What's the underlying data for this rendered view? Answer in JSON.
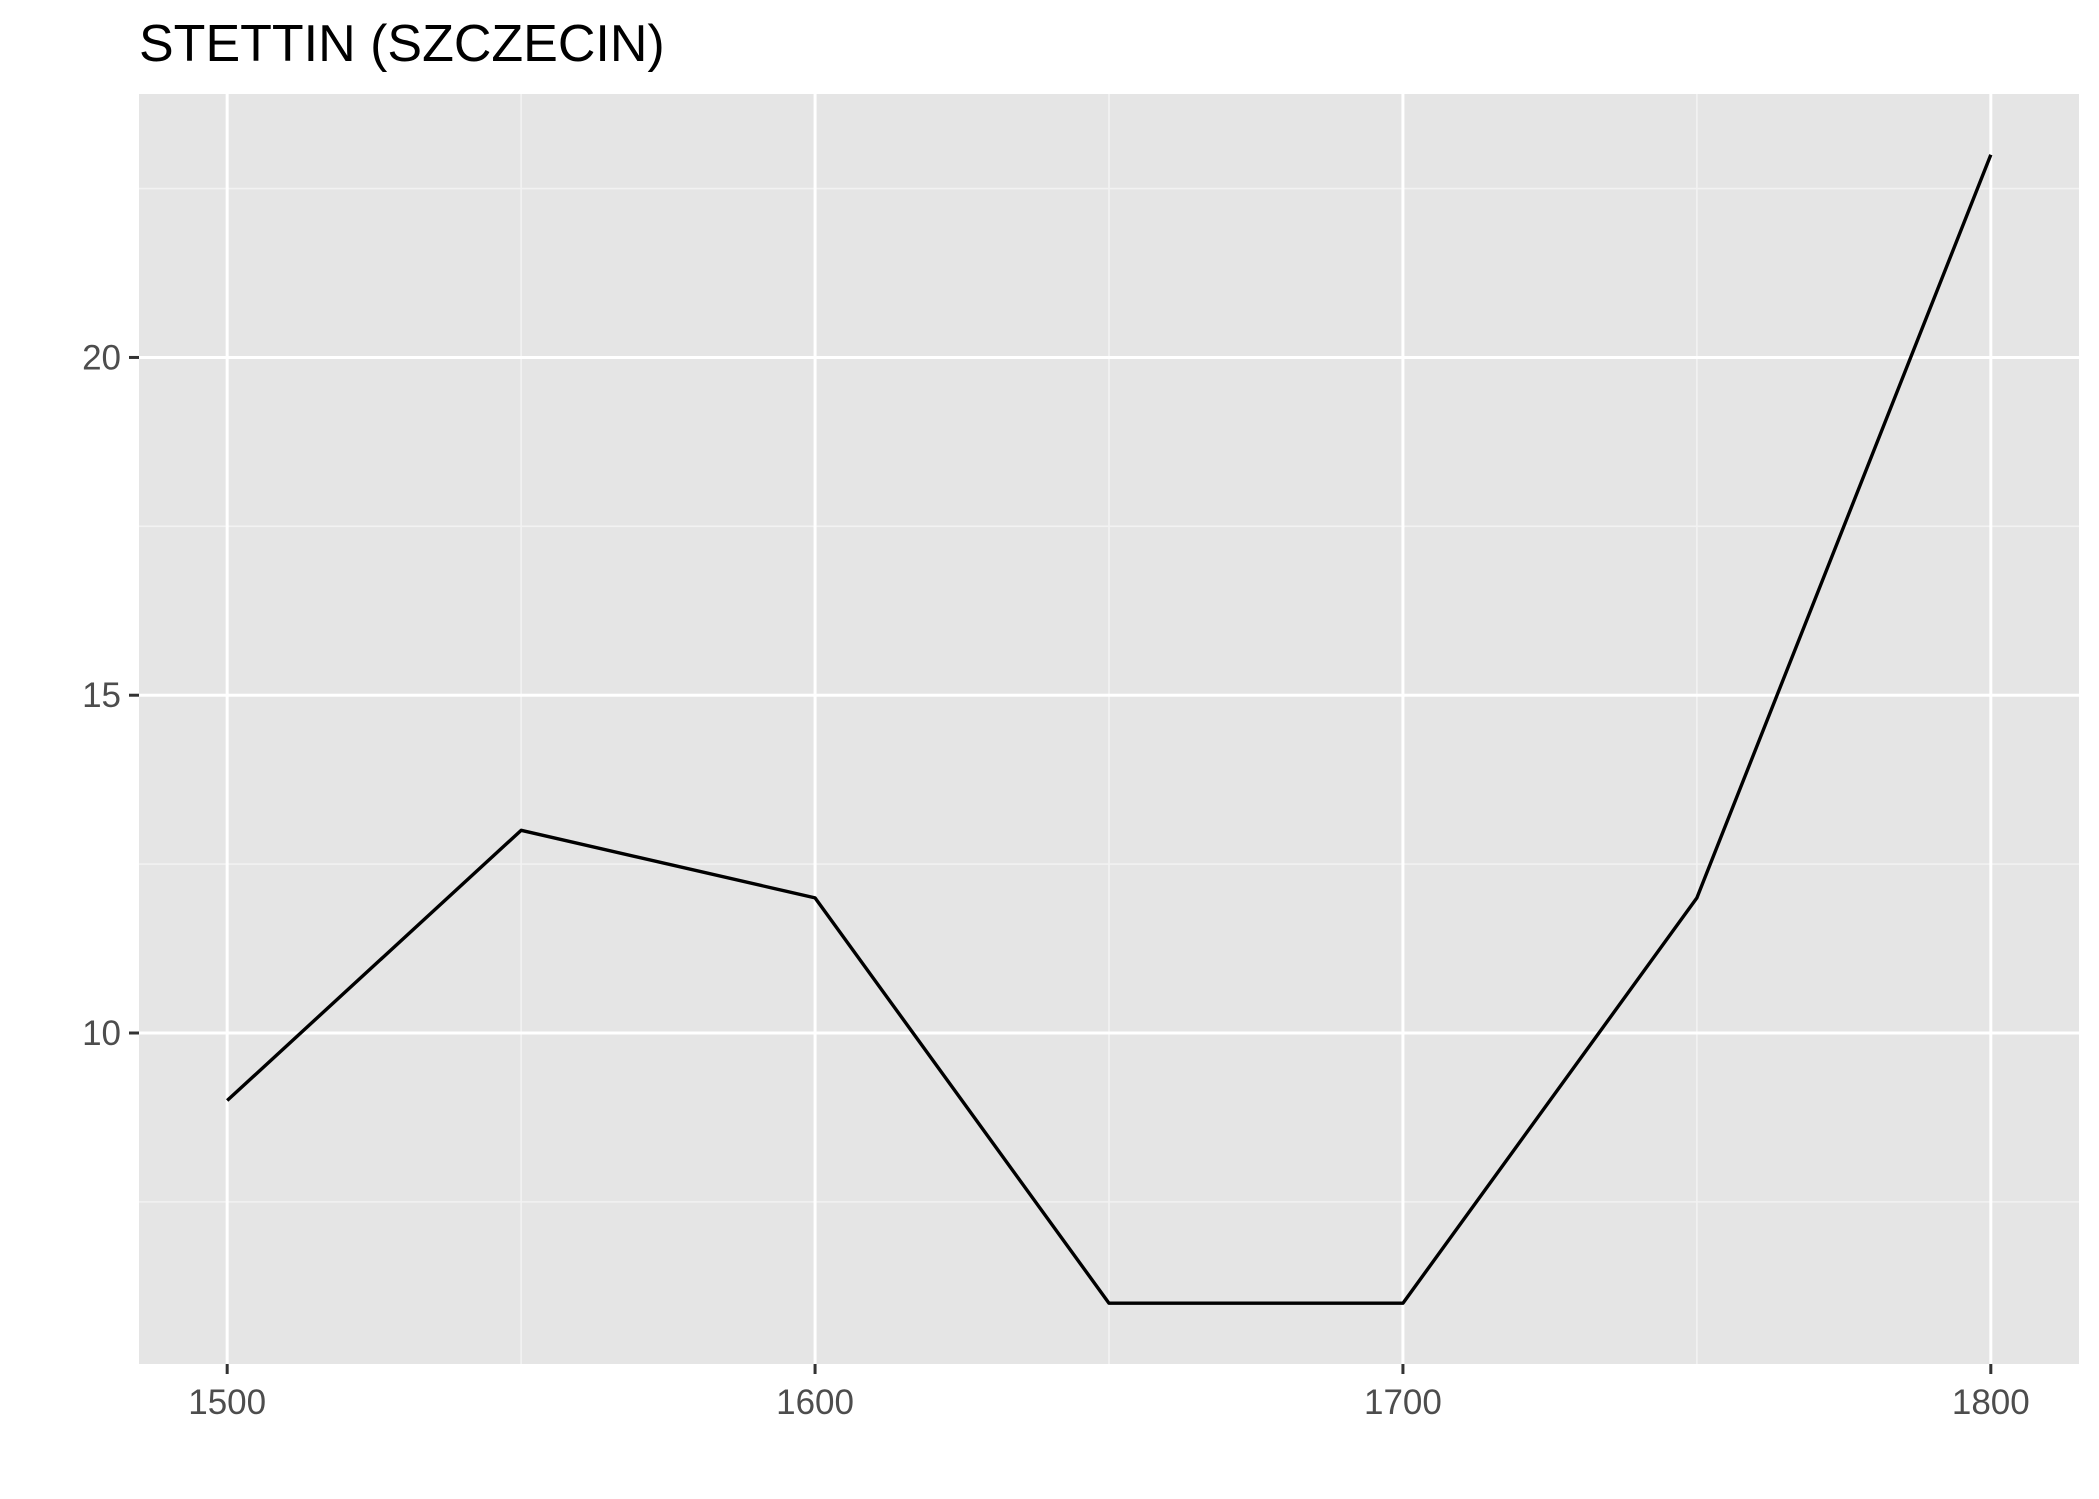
{
  "chart_data": {
    "type": "line",
    "title": "STETTIN (SZCZECIN)",
    "xlabel": "",
    "ylabel": "",
    "x": [
      1500,
      1550,
      1600,
      1650,
      1700,
      1750,
      1800
    ],
    "series": [
      {
        "values": [
          9,
          13,
          12,
          6,
          6,
          12,
          23
        ]
      }
    ],
    "xlim": [
      1485,
      1815
    ],
    "ylim": [
      5.1,
      23.9
    ],
    "x_ticks": [
      1500,
      1600,
      1700,
      1800
    ],
    "y_ticks": [
      10,
      15,
      20
    ],
    "x_tick_labels": [
      "1500",
      "1600",
      "1700",
      "1800"
    ],
    "y_tick_labels": [
      "10",
      "15",
      "20"
    ],
    "grid": true,
    "legend": "none",
    "colors": {
      "panel_background": "#e5e5e5",
      "grid_major": "#ffffff",
      "grid_minor": "#f2f2f2",
      "line": "#000000",
      "tick_label": "#4d4d4d",
      "tick_mark": "#333333"
    }
  }
}
